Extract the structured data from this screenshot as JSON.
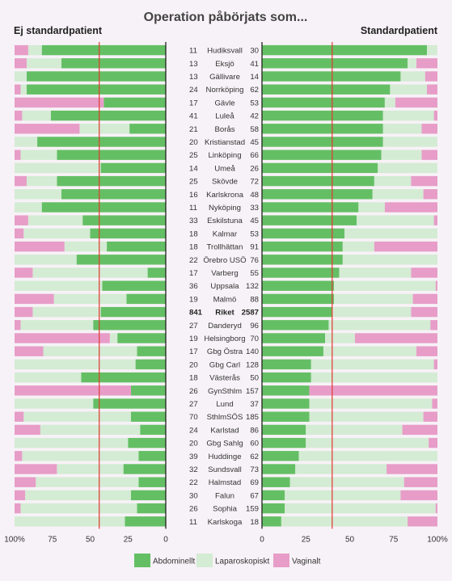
{
  "chart_data": {
    "type": "bar",
    "title": "Operation påbörjats som...",
    "panels": [
      {
        "title": "Ej standardpatient",
        "side": "left"
      },
      {
        "title": "Standardpatient",
        "side": "right"
      }
    ],
    "legend": [
      "Abdominellt",
      "Laparoskopiskt",
      "Vaginalt"
    ],
    "colors": {
      "Abdominellt": "#64bf64",
      "Laparoskopiskt": "#d4ebd4",
      "Vaginalt": "#e79dc8",
      "reference": "#e2372f",
      "axis": "#222222",
      "bg": "#f7f2f7"
    },
    "left_ticks": [
      "100%",
      "75",
      "50",
      "25",
      "0"
    ],
    "right_ticks": [
      "0",
      "25",
      "50",
      "75",
      "100%"
    ],
    "reference_line_pct": {
      "left": 44,
      "right": 40
    },
    "rows": [
      {
        "name": "Hudiksvall",
        "n_ej": "11",
        "n_std": "30",
        "ej": [
          82,
          9,
          9
        ],
        "std": [
          94,
          6,
          0
        ]
      },
      {
        "name": "Eksjö",
        "n_ej": "13",
        "n_std": "41",
        "ej": [
          69,
          23,
          8
        ],
        "std": [
          83,
          5,
          12
        ]
      },
      {
        "name": "Gällivare",
        "n_ej": "13",
        "n_std": "14",
        "ej": [
          92,
          8,
          0
        ],
        "std": [
          79,
          14,
          7
        ]
      },
      {
        "name": "Norrköping",
        "n_ej": "24",
        "n_std": "62",
        "ej": [
          92,
          4,
          4
        ],
        "std": [
          73,
          21,
          6
        ]
      },
      {
        "name": "Gävle",
        "n_ej": "17",
        "n_std": "53",
        "ej": [
          41,
          0,
          59
        ],
        "std": [
          70,
          6,
          24
        ]
      },
      {
        "name": "Luleå",
        "n_ej": "41",
        "n_std": "42",
        "ej": [
          76,
          19,
          5
        ],
        "std": [
          69,
          29,
          2
        ]
      },
      {
        "name": "Borås",
        "n_ej": "21",
        "n_std": "58",
        "ej": [
          24,
          33,
          43
        ],
        "std": [
          69,
          22,
          9
        ]
      },
      {
        "name": "Kristianstad",
        "n_ej": "20",
        "n_std": "45",
        "ej": [
          85,
          15,
          0
        ],
        "std": [
          69,
          31,
          0
        ]
      },
      {
        "name": "Linköping",
        "n_ej": "25",
        "n_std": "66",
        "ej": [
          72,
          24,
          4
        ],
        "std": [
          68,
          23,
          9
        ]
      },
      {
        "name": "Umeå",
        "n_ej": "14",
        "n_std": "26",
        "ej": [
          43,
          57,
          0
        ],
        "std": [
          66,
          34,
          0
        ]
      },
      {
        "name": "Skövde",
        "n_ej": "25",
        "n_std": "72",
        "ej": [
          72,
          20,
          8
        ],
        "std": [
          64,
          21,
          15
        ]
      },
      {
        "name": "Karlskrona",
        "n_ej": "16",
        "n_std": "48",
        "ej": [
          69,
          31,
          0
        ],
        "std": [
          63,
          29,
          8
        ]
      },
      {
        "name": "Nyköping",
        "n_ej": "11",
        "n_std": "33",
        "ej": [
          82,
          18,
          0
        ],
        "std": [
          55,
          15,
          30
        ]
      },
      {
        "name": "Eskilstuna",
        "n_ej": "33",
        "n_std": "45",
        "ej": [
          55,
          36,
          9
        ],
        "std": [
          54,
          44,
          2
        ]
      },
      {
        "name": "Kalmar",
        "n_ej": "18",
        "n_std": "53",
        "ej": [
          50,
          44,
          6
        ],
        "std": [
          47,
          53,
          0
        ]
      },
      {
        "name": "Trollhättan",
        "n_ej": "18",
        "n_std": "91",
        "ej": [
          39,
          28,
          33
        ],
        "std": [
          46,
          18,
          36
        ]
      },
      {
        "name": "Örebro USÖ",
        "n_ej": "22",
        "n_std": "76",
        "ej": [
          59,
          41,
          0
        ],
        "std": [
          46,
          54,
          0
        ]
      },
      {
        "name": "Varberg",
        "n_ej": "17",
        "n_std": "55",
        "ej": [
          12,
          76,
          12
        ],
        "std": [
          44,
          41,
          15
        ]
      },
      {
        "name": "Uppsala",
        "n_ej": "36",
        "n_std": "132",
        "ej": [
          42,
          58,
          0
        ],
        "std": [
          41,
          58,
          1
        ]
      },
      {
        "name": "Malmö",
        "n_ej": "19",
        "n_std": "88",
        "ej": [
          26,
          48,
          26
        ],
        "std": [
          41,
          45,
          14
        ]
      },
      {
        "name": "Riket",
        "n_ej": "841",
        "n_std": "2587",
        "bold": true,
        "ej": [
          43,
          45,
          12
        ],
        "std": [
          40,
          45,
          15
        ]
      },
      {
        "name": "Danderyd",
        "n_ej": "27",
        "n_std": "96",
        "ej": [
          48,
          48,
          4
        ],
        "std": [
          38,
          58,
          4
        ]
      },
      {
        "name": "Helsingborg",
        "n_ej": "19",
        "n_std": "70",
        "ej": [
          32,
          5,
          63
        ],
        "std": [
          36,
          17,
          47
        ]
      },
      {
        "name": "Gbg Östra",
        "n_ej": "17",
        "n_std": "140",
        "ej": [
          19,
          62,
          19
        ],
        "std": [
          35,
          53,
          12
        ]
      },
      {
        "name": "Gbg Carl",
        "n_ej": "20",
        "n_std": "128",
        "ej": [
          20,
          80,
          0
        ],
        "std": [
          28,
          70,
          2
        ]
      },
      {
        "name": "Västerås",
        "n_ej": "18",
        "n_std": "50",
        "ej": [
          56,
          44,
          0
        ],
        "std": [
          28,
          72,
          0
        ]
      },
      {
        "name": "GynSthlm",
        "n_ej": "26",
        "n_std": "157",
        "ej": [
          23,
          0,
          77
        ],
        "std": [
          27,
          0,
          73
        ]
      },
      {
        "name": "Lund",
        "n_ej": "27",
        "n_std": "37",
        "ej": [
          48,
          52,
          0
        ],
        "std": [
          27,
          70,
          3
        ]
      },
      {
        "name": "SthlmSÖS",
        "n_ej": "70",
        "n_std": "185",
        "ej": [
          23,
          71,
          6
        ],
        "std": [
          27,
          65,
          8
        ]
      },
      {
        "name": "Karlstad",
        "n_ej": "24",
        "n_std": "86",
        "ej": [
          17,
          66,
          17
        ],
        "std": [
          25,
          55,
          20
        ]
      },
      {
        "name": "Gbg Sahlg",
        "n_ej": "20",
        "n_std": "60",
        "ej": [
          25,
          75,
          0
        ],
        "std": [
          25,
          70,
          5
        ]
      },
      {
        "name": "Huddinge",
        "n_ej": "39",
        "n_std": "62",
        "ej": [
          18,
          77,
          5
        ],
        "std": [
          21,
          79,
          0
        ]
      },
      {
        "name": "Sundsvall",
        "n_ej": "32",
        "n_std": "73",
        "ej": [
          28,
          44,
          28
        ],
        "std": [
          19,
          52,
          29
        ]
      },
      {
        "name": "Halmstad",
        "n_ej": "22",
        "n_std": "69",
        "ej": [
          18,
          68,
          14
        ],
        "std": [
          16,
          65,
          19
        ]
      },
      {
        "name": "Falun",
        "n_ej": "30",
        "n_std": "67",
        "ej": [
          23,
          70,
          7
        ],
        "std": [
          13,
          66,
          21
        ]
      },
      {
        "name": "Sophia",
        "n_ej": "26",
        "n_std": "159",
        "ej": [
          19,
          77,
          4
        ],
        "std": [
          13,
          86,
          1
        ]
      },
      {
        "name": "Karlskoga",
        "n_ej": "11",
        "n_std": "18",
        "ej": [
          27,
          73,
          0
        ],
        "std": [
          11,
          72,
          17
        ]
      }
    ]
  }
}
